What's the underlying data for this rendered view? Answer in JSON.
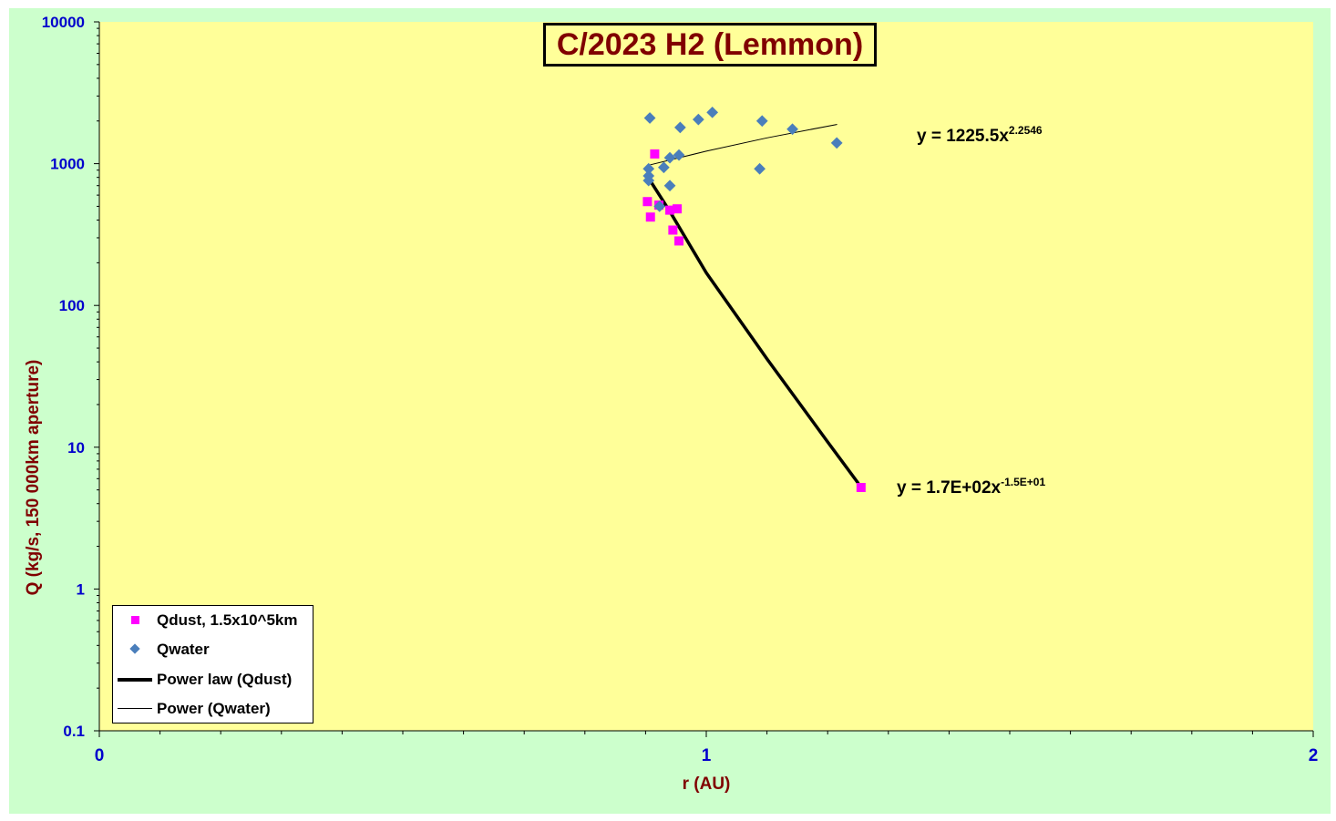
{
  "chart_data": {
    "type": "scatter",
    "title": "C/2023 H2 (Lemmon)",
    "xlabel": "r (AU)",
    "ylabel": "Q (kg/s, 150 000km aperture)",
    "xlim": [
      0,
      2
    ],
    "ylim": [
      0.1,
      10000
    ],
    "yscale": "log",
    "x_ticks": [
      "0",
      "1",
      "2"
    ],
    "y_ticks": [
      "0.1",
      "1",
      "10",
      "100",
      "1000",
      "10000"
    ],
    "grid": false,
    "legend_position": "bottom-left",
    "series": [
      {
        "name": "Qdust, 1.5x10^5km",
        "marker": "square",
        "color": "#ff00ff",
        "points": [
          [
            0.915,
            1170
          ],
          [
            0.908,
            420
          ],
          [
            0.903,
            540
          ],
          [
            0.922,
            510
          ],
          [
            0.94,
            470
          ],
          [
            0.952,
            480
          ],
          [
            0.945,
            340
          ],
          [
            0.955,
            285
          ],
          [
            1.255,
            5.2
          ]
        ]
      },
      {
        "name": "Qwater",
        "marker": "diamond",
        "color": "#4a7ebb",
        "points": [
          [
            0.907,
            2100
          ],
          [
            0.957,
            1800
          ],
          [
            0.987,
            2050
          ],
          [
            1.01,
            2300
          ],
          [
            1.092,
            2000
          ],
          [
            1.142,
            1750
          ],
          [
            1.215,
            1400
          ],
          [
            1.088,
            920
          ],
          [
            0.905,
            920
          ],
          [
            0.93,
            940
          ],
          [
            0.94,
            1100
          ],
          [
            0.955,
            1150
          ],
          [
            0.905,
            820
          ],
          [
            0.905,
            760
          ],
          [
            0.94,
            700
          ],
          [
            0.923,
            500
          ]
        ]
      }
    ],
    "fits": [
      {
        "name": "Power law (Qdust)",
        "equation_main": "y = 1.7E+02x",
        "equation_exp": "-1.5E+01",
        "color": "#000000",
        "width": "thick",
        "points": [
          [
            0.905,
            790
          ],
          [
            0.94,
            460
          ],
          [
            1.0,
            170
          ],
          [
            1.1,
            42
          ],
          [
            1.2,
            10.9
          ],
          [
            1.25,
            5.6
          ]
        ]
      },
      {
        "name": "Power (Qwater)",
        "equation_main": "y = 1225.5x",
        "equation_exp": "2.2546",
        "color": "#000000",
        "width": "thin",
        "points": [
          [
            0.905,
            975
          ],
          [
            1.0,
            1225
          ],
          [
            1.1,
            1520
          ],
          [
            1.215,
            1890
          ]
        ]
      }
    ]
  },
  "colors": {
    "background": "#ccffcc",
    "plot_background": "#ffff99",
    "tick_text": "#0000cc",
    "axis_title": "#800000"
  }
}
